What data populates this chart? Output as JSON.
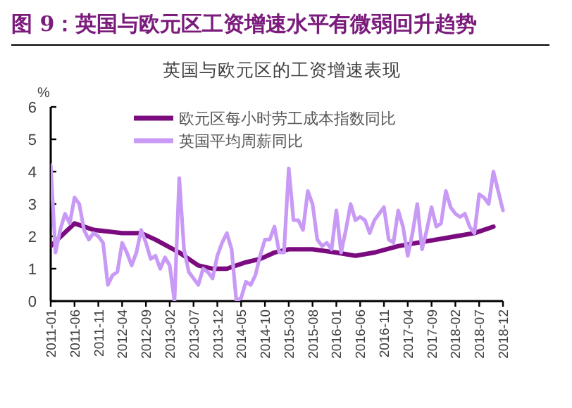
{
  "chart_data": {
    "type": "line",
    "title": "图 9：英国与欧元区工资增速水平有微弱回升趋势",
    "subtitle": "英国与欧元区的工资增速表现",
    "ylabel": "%",
    "xlim": [
      "2011-01",
      "2018-12"
    ],
    "xticks": [
      "2011-01",
      "2011-06",
      "2011-11",
      "2012-04",
      "2012-09",
      "2013-02",
      "2013-07",
      "2013-12",
      "2014-05",
      "2014-10",
      "2015-03",
      "2015-08",
      "2016-01",
      "2016-06",
      "2016-11",
      "2017-04",
      "2017-09",
      "2018-02",
      "2018-07",
      "2018-12"
    ],
    "ylim": [
      0,
      6
    ],
    "yticks": [
      0,
      1,
      2,
      3,
      4,
      5,
      6
    ],
    "grid": false,
    "legend": "top",
    "series": [
      {
        "name": "欧元区每小时劳工成本指数同比",
        "color": "#7b0c7f",
        "x": [
          "2011-01",
          "2011-06",
          "2011-10",
          "2012-04",
          "2012-08",
          "2012-11",
          "2013-04",
          "2013-08",
          "2013-11",
          "2014-02",
          "2014-06",
          "2014-09",
          "2014-12",
          "2015-03",
          "2015-08",
          "2016-01",
          "2016-05",
          "2016-09",
          "2017-02",
          "2017-06",
          "2017-10",
          "2018-02",
          "2018-06",
          "2018-10"
        ],
        "values": [
          1.7,
          2.4,
          2.2,
          2.1,
          2.1,
          1.9,
          1.5,
          1.1,
          1.0,
          1.0,
          1.2,
          1.3,
          1.5,
          1.6,
          1.6,
          1.5,
          1.4,
          1.5,
          1.7,
          1.8,
          1.9,
          2.0,
          2.1,
          2.3
        ]
      },
      {
        "name": "英国平均周薪同比",
        "color": "#c99af5",
        "x": [
          "2011-01",
          "2011-02",
          "2011-03",
          "2011-04",
          "2011-05",
          "2011-06",
          "2011-07",
          "2011-08",
          "2011-09",
          "2011-10",
          "2011-11",
          "2011-12",
          "2012-01",
          "2012-02",
          "2012-03",
          "2012-04",
          "2012-05",
          "2012-06",
          "2012-07",
          "2012-08",
          "2012-09",
          "2012-10",
          "2012-11",
          "2012-12",
          "2013-01",
          "2013-02",
          "2013-03",
          "2013-04",
          "2013-05",
          "2013-06",
          "2013-07",
          "2013-08",
          "2013-09",
          "2013-10",
          "2013-11",
          "2013-12",
          "2014-01",
          "2014-02",
          "2014-03",
          "2014-04",
          "2014-05",
          "2014-06",
          "2014-07",
          "2014-08",
          "2014-09",
          "2014-10",
          "2014-11",
          "2014-12",
          "2015-01",
          "2015-02",
          "2015-03",
          "2015-04",
          "2015-05",
          "2015-06",
          "2015-07",
          "2015-08",
          "2015-09",
          "2015-10",
          "2015-11",
          "2015-12",
          "2016-01",
          "2016-02",
          "2016-03",
          "2016-04",
          "2016-05",
          "2016-06",
          "2016-07",
          "2016-08",
          "2016-09",
          "2016-10",
          "2016-11",
          "2016-12",
          "2017-01",
          "2017-02",
          "2017-03",
          "2017-04",
          "2017-05",
          "2017-06",
          "2017-07",
          "2017-08",
          "2017-09",
          "2017-10",
          "2017-11",
          "2017-12",
          "2018-01",
          "2018-02",
          "2018-03",
          "2018-04",
          "2018-05",
          "2018-06",
          "2018-07",
          "2018-08",
          "2018-09",
          "2018-10",
          "2018-11",
          "2018-12"
        ],
        "values": [
          4.2,
          1.5,
          2.2,
          2.7,
          2.4,
          3.2,
          3.0,
          2.2,
          1.9,
          2.1,
          2.0,
          1.8,
          0.5,
          0.8,
          0.9,
          1.8,
          1.5,
          1.1,
          1.5,
          2.2,
          1.8,
          1.3,
          1.4,
          1.0,
          1.35,
          1.1,
          0,
          3.8,
          1.6,
          0.9,
          0.7,
          0.5,
          1.0,
          0.9,
          0.7,
          1.4,
          1.8,
          2.1,
          1.6,
          0,
          0.1,
          0.6,
          0.5,
          0.8,
          1.4,
          1.9,
          1.9,
          2.3,
          1.5,
          1.5,
          4.1,
          2.5,
          2.5,
          2.2,
          3.4,
          3.0,
          1.9,
          1.7,
          1.8,
          1.6,
          2.8,
          1.5,
          2.2,
          3.0,
          2.5,
          2.6,
          2.5,
          2.1,
          2.5,
          2.7,
          2.9,
          1.9,
          1.8,
          2.8,
          2.3,
          1.4,
          2.1,
          3.0,
          1.6,
          2.2,
          2.9,
          2.3,
          2.4,
          3.4,
          2.9,
          2.7,
          2.6,
          2.7,
          2.3,
          2.1,
          3.3,
          3.2,
          3.0,
          4.0,
          3.4,
          2.8
        ]
      }
    ]
  }
}
